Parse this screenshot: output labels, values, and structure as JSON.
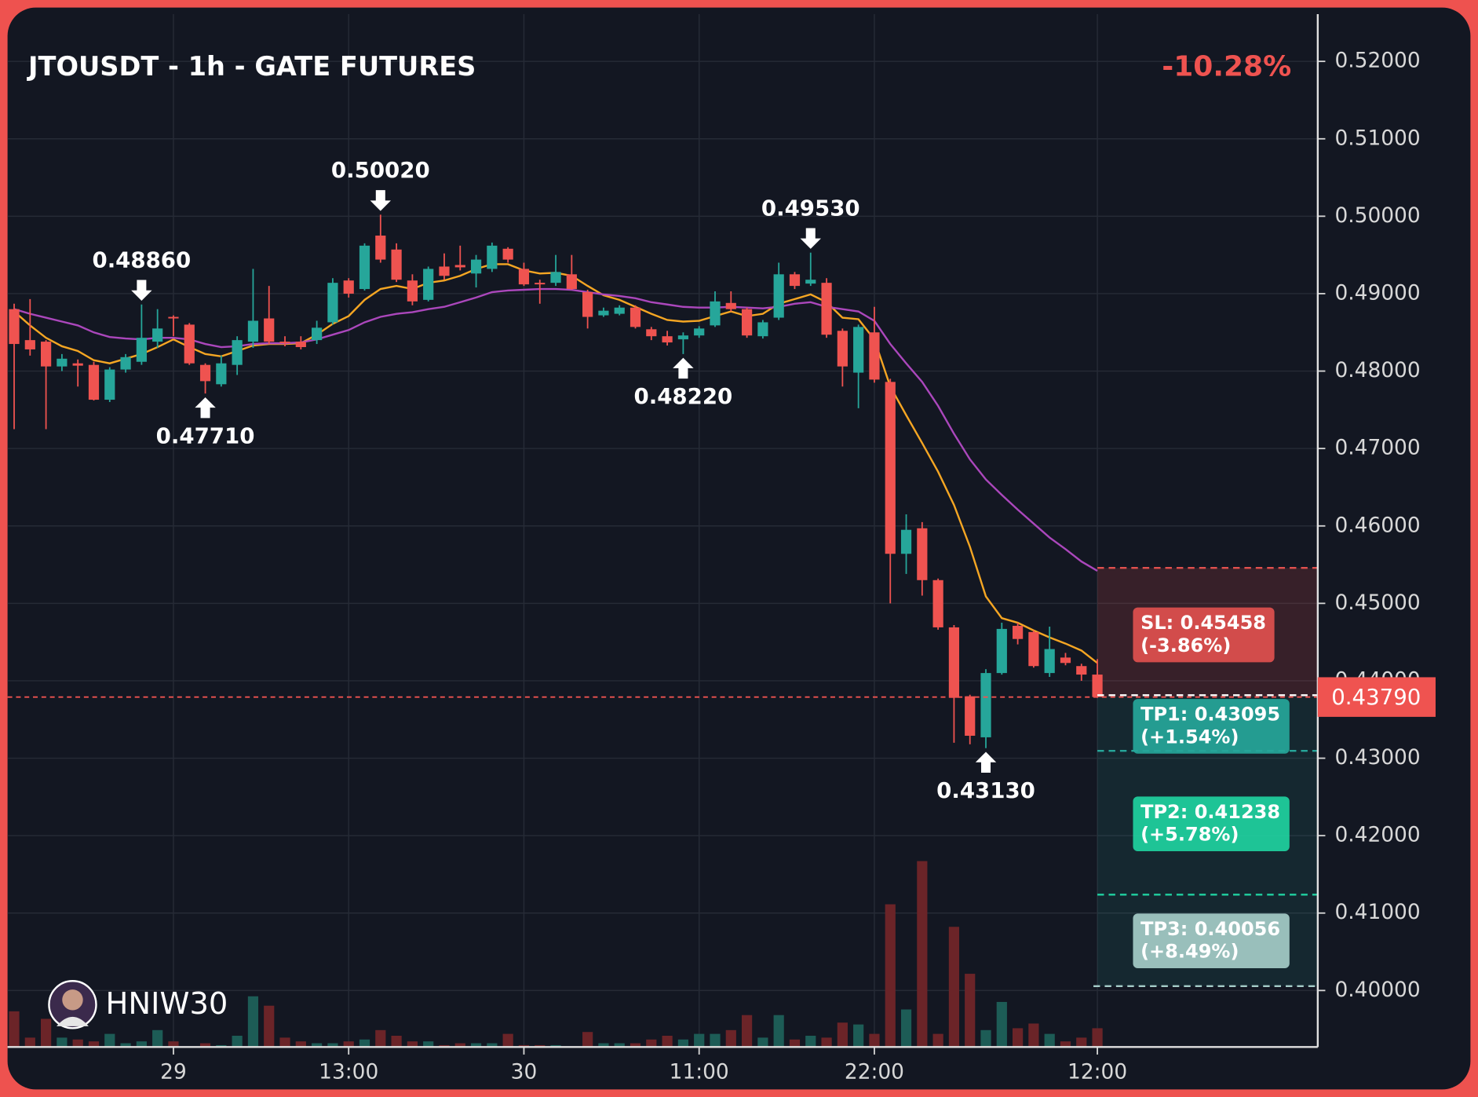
{
  "chart_data": {
    "type": "candlestick",
    "title": "JTOUSDT - 1h - GATE FUTURES",
    "change": "-10.28%",
    "watermark": "HNIW30",
    "categories": [
      null,
      null,
      null,
      null,
      null,
      null,
      null,
      null,
      null,
      null,
      "29",
      null,
      null,
      null,
      null,
      null,
      null,
      null,
      null,
      null,
      null,
      "13:00",
      null,
      null,
      null,
      null,
      null,
      null,
      null,
      null,
      null,
      null,
      "30",
      null,
      null,
      null,
      null,
      null,
      null,
      null,
      null,
      null,
      null,
      "11:00",
      null,
      null,
      null,
      null,
      null,
      null,
      null,
      null,
      null,
      null,
      "22:00",
      null,
      null,
      null,
      null,
      null,
      null,
      null,
      null,
      null,
      null,
      null,
      null,
      null,
      "12:00"
    ],
    "open": [
      0.488,
      0.484,
      0.4838,
      0.4806,
      0.481,
      0.4808,
      0.4763,
      0.4802,
      0.4812,
      0.4838,
      0.487,
      0.486,
      0.4808,
      0.4783,
      0.4808,
      0.4838,
      0.4868,
      0.4838,
      0.4838,
      0.484,
      0.4863,
      0.4917,
      0.4906,
      0.4975,
      0.4957,
      0.4917,
      0.4892,
      0.4935,
      0.4937,
      0.4926,
      0.4932,
      0.4958,
      0.4932,
      0.4914,
      0.4914,
      0.4925,
      0.4902,
      0.4872,
      0.4874,
      0.4882,
      0.4854,
      0.4845,
      0.4841,
      0.4846,
      0.4859,
      0.4888,
      0.488,
      0.4845,
      0.4869,
      0.4925,
      0.4913,
      0.4914,
      0.4852,
      0.4798,
      0.485,
      0.4786,
      0.4564,
      0.4597,
      0.453,
      0.4469,
      0.438,
      0.4327,
      0.441,
      0.4471,
      0.4463,
      0.441,
      0.443,
      0.4419,
      0.4408
    ],
    "high": [
      0.4887,
      0.4893,
      0.484,
      0.4822,
      0.4815,
      0.4812,
      0.4805,
      0.4822,
      0.4886,
      0.488,
      0.4872,
      0.4862,
      0.481,
      0.482,
      0.4845,
      0.4932,
      0.491,
      0.4845,
      0.4845,
      0.4865,
      0.492,
      0.492,
      0.4965,
      0.5002,
      0.4965,
      0.4925,
      0.4935,
      0.4952,
      0.4962,
      0.495,
      0.4966,
      0.496,
      0.494,
      0.4918,
      0.495,
      0.495,
      0.4905,
      0.4882,
      0.4885,
      0.4885,
      0.4857,
      0.4852,
      0.485,
      0.4858,
      0.4903,
      0.4903,
      0.4882,
      0.4866,
      0.494,
      0.4928,
      0.4953,
      0.492,
      0.4855,
      0.486,
      0.4883,
      0.479,
      0.4615,
      0.4605,
      0.4532,
      0.4472,
      0.4382,
      0.4415,
      0.4475,
      0.4475,
      0.4465,
      0.447,
      0.4436,
      0.4422,
      0.4428
    ],
    "low": [
      0.4725,
      0.482,
      0.4725,
      0.48,
      0.478,
      0.4762,
      0.476,
      0.4798,
      0.4808,
      0.483,
      0.4845,
      0.4808,
      0.4771,
      0.478,
      0.4795,
      0.483,
      0.4835,
      0.4832,
      0.4828,
      0.4835,
      0.486,
      0.4895,
      0.4904,
      0.494,
      0.4915,
      0.4885,
      0.489,
      0.4918,
      0.493,
      0.4908,
      0.4928,
      0.494,
      0.491,
      0.4887,
      0.491,
      0.4905,
      0.4855,
      0.487,
      0.4872,
      0.4855,
      0.484,
      0.4833,
      0.4822,
      0.4843,
      0.4857,
      0.4877,
      0.4843,
      0.4842,
      0.4866,
      0.4906,
      0.491,
      0.4843,
      0.478,
      0.4752,
      0.4785,
      0.45,
      0.4538,
      0.451,
      0.4466,
      0.432,
      0.4318,
      0.4313,
      0.4408,
      0.4447,
      0.4417,
      0.4405,
      0.442,
      0.44,
      0.4378
    ],
    "close": [
      0.4835,
      0.4828,
      0.4806,
      0.4816,
      0.4807,
      0.4763,
      0.4802,
      0.4818,
      0.4843,
      0.4855,
      0.4868,
      0.481,
      0.4787,
      0.481,
      0.484,
      0.4865,
      0.4838,
      0.4836,
      0.4831,
      0.4856,
      0.4914,
      0.49,
      0.4962,
      0.4944,
      0.4918,
      0.489,
      0.4932,
      0.4923,
      0.4934,
      0.4944,
      0.4962,
      0.4944,
      0.4912,
      0.4912,
      0.4928,
      0.4906,
      0.487,
      0.4878,
      0.4882,
      0.4857,
      0.4845,
      0.4837,
      0.4846,
      0.4855,
      0.489,
      0.488,
      0.4846,
      0.4863,
      0.4925,
      0.491,
      0.4918,
      0.4847,
      0.4806,
      0.4857,
      0.4789,
      0.4564,
      0.4595,
      0.453,
      0.4469,
      0.4378,
      0.4329,
      0.441,
      0.4467,
      0.4454,
      0.4419,
      0.4441,
      0.4423,
      0.4408,
      0.4379
    ],
    "volume": [
      38,
      10,
      30,
      10,
      8,
      6,
      14,
      4,
      6,
      18,
      6,
      0,
      4,
      2,
      12,
      54,
      44,
      10,
      6,
      4,
      4,
      6,
      8,
      18,
      12,
      6,
      6,
      2,
      4,
      4,
      4,
      14,
      2,
      2,
      2,
      0,
      16,
      4,
      4,
      4,
      8,
      12,
      8,
      14,
      14,
      18,
      34,
      10,
      34,
      8,
      12,
      10,
      26,
      24,
      14,
      152,
      40,
      198,
      14,
      128,
      78,
      18,
      48,
      20,
      25,
      14,
      6,
      10,
      20
    ],
    "vlim": [
      0,
      1100
    ],
    "up_color": "#26a69a",
    "down_color": "#ef5350",
    "volume_up_color": "#1d5c56",
    "volume_down_color": "#6b2428",
    "ma": [
      {
        "color": "#f5a623",
        "values": [
          0.4877,
          0.4859,
          0.4843,
          0.4832,
          0.4826,
          0.4814,
          0.481,
          0.4816,
          0.4822,
          0.4831,
          0.4841,
          0.4831,
          0.4822,
          0.4819,
          0.4826,
          0.4833,
          0.4835,
          0.4835,
          0.4836,
          0.4847,
          0.4861,
          0.4871,
          0.4892,
          0.4906,
          0.491,
          0.4906,
          0.4914,
          0.4917,
          0.4923,
          0.4932,
          0.4938,
          0.4938,
          0.493,
          0.4926,
          0.4927,
          0.4923,
          0.491,
          0.4898,
          0.4892,
          0.4883,
          0.4874,
          0.4866,
          0.4864,
          0.4865,
          0.4871,
          0.4877,
          0.4871,
          0.4874,
          0.4887,
          0.4893,
          0.4899,
          0.4889,
          0.4869,
          0.4867,
          0.4841,
          0.478,
          0.4743,
          0.4707,
          0.467,
          0.4627,
          0.4573,
          0.4509,
          0.4481,
          0.4475,
          0.4465,
          0.4456,
          0.4448,
          0.4439,
          0.4423
        ]
      },
      {
        "color": "#ab47bc",
        "values": [
          0.488,
          0.4874,
          0.4869,
          0.4864,
          0.4859,
          0.485,
          0.4844,
          0.4842,
          0.4841,
          0.4843,
          0.4843,
          0.4841,
          0.4835,
          0.4831,
          0.4832,
          0.4835,
          0.4836,
          0.4836,
          0.4837,
          0.4841,
          0.4847,
          0.4853,
          0.4863,
          0.487,
          0.4874,
          0.4876,
          0.488,
          0.4883,
          0.4889,
          0.4895,
          0.4902,
          0.4904,
          0.4905,
          0.4906,
          0.4906,
          0.4905,
          0.4902,
          0.4899,
          0.4897,
          0.4894,
          0.4889,
          0.4886,
          0.4883,
          0.4882,
          0.4882,
          0.4883,
          0.4882,
          0.4881,
          0.4883,
          0.4887,
          0.4889,
          0.4883,
          0.488,
          0.4877,
          0.4865,
          0.4835,
          0.481,
          0.4786,
          0.4755,
          0.4719,
          0.4686,
          0.466,
          0.464,
          0.4621,
          0.4603,
          0.4585,
          0.457,
          0.4554,
          0.4542
        ]
      }
    ],
    "annotations": [
      {
        "index": 8,
        "value": 0.4886,
        "label": "0.48860",
        "position": "above"
      },
      {
        "index": 12,
        "value": 0.4771,
        "label": "0.47710",
        "position": "below"
      },
      {
        "index": 23,
        "value": 0.5002,
        "label": "0.50020",
        "position": "above"
      },
      {
        "index": 42,
        "value": 0.4822,
        "label": "0.48220",
        "position": "below"
      },
      {
        "index": 50,
        "value": 0.4953,
        "label": "0.49530",
        "position": "above"
      },
      {
        "index": 61,
        "value": 0.4313,
        "label": "0.43130",
        "position": "below"
      }
    ],
    "last_price": {
      "value": 0.4379,
      "label": "0.43790",
      "color": "#ef5350"
    },
    "levels": [
      {
        "value": 0.45458,
        "label": "SL: 0.45458",
        "change": "(-3.86%)",
        "color": "#e0504e"
      },
      {
        "value": 0.43095,
        "label": "TP1: 0.43095",
        "change": "(+1.54%)",
        "color": "#26a69a"
      },
      {
        "value": 0.41238,
        "label": "TP2: 0.41238",
        "change": "(+5.78%)",
        "color": "#20d1a0"
      },
      {
        "value": 0.40056,
        "label": "TP3: 0.40056",
        "change": "(+8.49%)",
        "color": "#a5ccc8"
      }
    ],
    "ylim": [
      0.3927,
      0.5261
    ],
    "yticks": [
      {
        "value": 0.52,
        "label": "0.52000"
      },
      {
        "value": 0.51,
        "label": "0.51000"
      },
      {
        "value": 0.5,
        "label": "0.50000"
      },
      {
        "value": 0.49,
        "label": "0.49000"
      },
      {
        "value": 0.48,
        "label": "0.48000"
      },
      {
        "value": 0.47,
        "label": "0.47000"
      },
      {
        "value": 0.46,
        "label": "0.46000"
      },
      {
        "value": 0.45,
        "label": "0.45000"
      },
      {
        "value": 0.44,
        "label": "0.44000"
      },
      {
        "value": 0.43,
        "label": "0.43000"
      },
      {
        "value": 0.42,
        "label": "0.42000"
      },
      {
        "value": 0.41,
        "label": "0.41000"
      },
      {
        "value": 0.4,
        "label": "0.40000"
      }
    ],
    "grid": true
  }
}
